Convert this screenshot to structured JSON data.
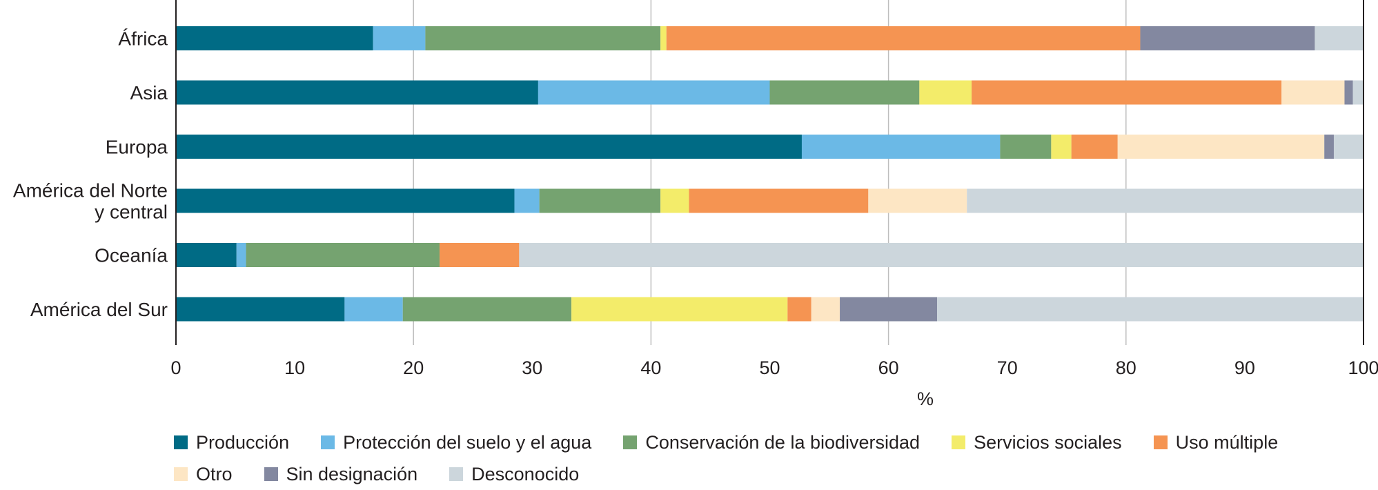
{
  "chart_data": {
    "type": "bar",
    "orientation": "horizontal",
    "stacked": true,
    "title": "",
    "xlabel": "%",
    "ylabel": "",
    "xlim": [
      0,
      100
    ],
    "xticks": [
      0,
      10,
      20,
      30,
      40,
      50,
      60,
      70,
      80,
      90,
      100
    ],
    "grid": "vertical gridlines at 20, 40, 60, 80",
    "legend_position": "bottom",
    "categories": [
      "África",
      "Asia",
      "Europa",
      "América del Norte y central",
      "Oceanía",
      "América del Sur"
    ],
    "category_lines": [
      [
        "África"
      ],
      [
        "Asia"
      ],
      [
        "Europa"
      ],
      [
        "América del Norte",
        "y central"
      ],
      [
        "Oceanía"
      ],
      [
        "América del Sur"
      ]
    ],
    "series": [
      {
        "name": "Producción",
        "color": "#006b85",
        "values": [
          16.6,
          30.5,
          52.7,
          28.5,
          5.1,
          14.2
        ]
      },
      {
        "name": "Protección del suelo y el agua",
        "color": "#6bb9e6",
        "values": [
          4.4,
          19.5,
          16.7,
          2.1,
          0.8,
          4.9
        ]
      },
      {
        "name": "Conservación de la biodiversidad",
        "color": "#75a370",
        "values": [
          19.8,
          12.6,
          4.3,
          10.2,
          16.3,
          14.2
        ]
      },
      {
        "name": "Servicios sociales",
        "color": "#f3ec6a",
        "values": [
          0.5,
          4.4,
          1.7,
          2.4,
          0.0,
          18.2
        ]
      },
      {
        "name": "Uso múltiple",
        "color": "#f59452",
        "values": [
          39.9,
          26.1,
          3.9,
          15.1,
          6.7,
          2.0
        ]
      },
      {
        "name": "Otro",
        "color": "#fde6c4",
        "values": [
          0.0,
          5.3,
          17.4,
          8.3,
          0.0,
          2.4
        ]
      },
      {
        "name": "Sin designación",
        "color": "#8388a0",
        "values": [
          14.7,
          0.7,
          0.8,
          0.0,
          0.0,
          8.2
        ]
      },
      {
        "name": "Desconocido",
        "color": "#ccd6dc",
        "values": [
          4.1,
          0.9,
          2.5,
          33.4,
          71.1,
          35.9
        ]
      }
    ],
    "legend_rows": [
      [
        0,
        1,
        2,
        3,
        4
      ],
      [
        5,
        6,
        7
      ]
    ]
  }
}
